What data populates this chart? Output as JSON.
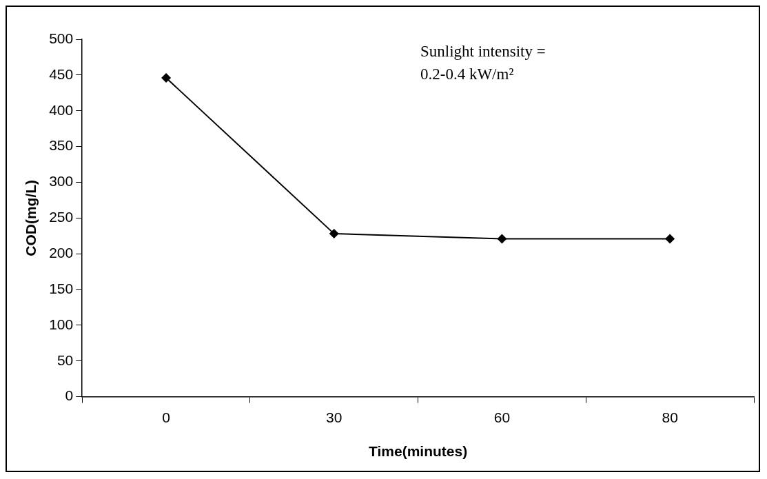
{
  "chart_data": {
    "type": "line",
    "xlabel": "Time(minutes)",
    "ylabel": "COD(mg/L)",
    "categories": [
      "0",
      "30",
      "60",
      "80"
    ],
    "series": [
      {
        "color": "#000000",
        "values": [
          446,
          228,
          221,
          221
        ]
      }
    ],
    "ylim": [
      0,
      500
    ],
    "yticks": [
      0,
      50,
      100,
      150,
      200,
      250,
      300,
      350,
      400,
      450,
      500
    ],
    "grid": false,
    "legend": false,
    "marker": "diamond",
    "line_style": "solid",
    "annotations": [
      "Sunlight intensity =\n0.2-0.4 kW/m²"
    ]
  }
}
